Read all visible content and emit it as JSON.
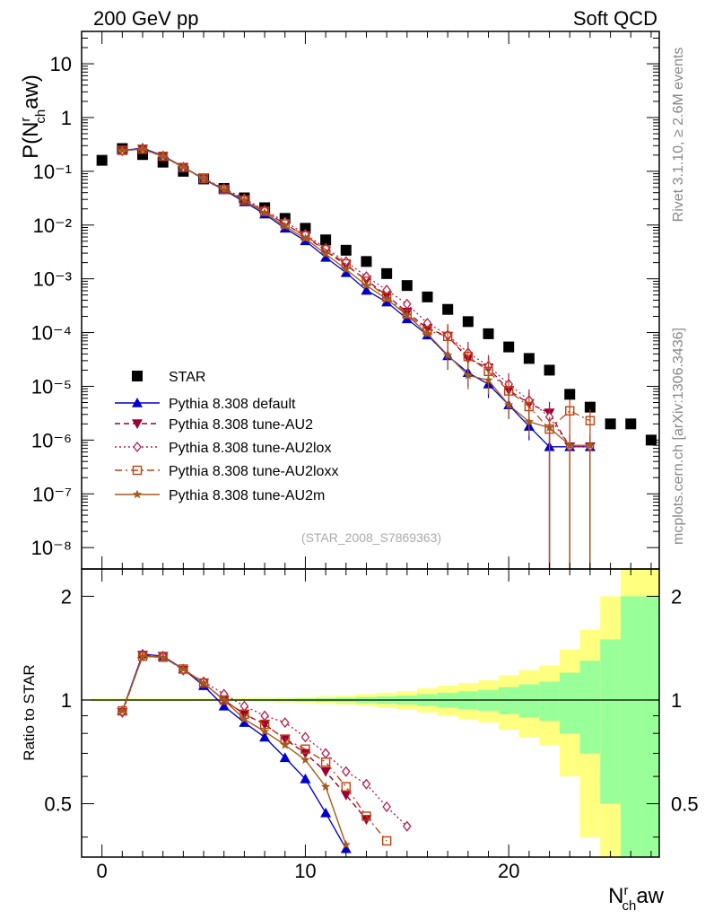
{
  "header": {
    "left": "200 GeV pp",
    "right": "Soft QCD"
  },
  "side": {
    "rivet": "Rivet 3.1.10, ≥ 2.6M events",
    "mcplots": "mcplots.cern.ch [arXiv:1306.3436]"
  },
  "axes": {
    "ylabel_top": {
      "base": "P(N",
      "sup": "r",
      "sub": "ch",
      "tail": "aw)"
    },
    "ylabel_bottom": "Ratio to STAR",
    "xlabel": {
      "base": "N",
      "sup": "r",
      "sub": "ch",
      "tail": "aw"
    }
  },
  "analysis_id": "(STAR_2008_S7869363)",
  "colors": {
    "star": "#000000",
    "default": "#0000cc",
    "au2": "#990033",
    "au2lox": "#b0204f",
    "au2loxx": "#c04010",
    "au2m": "#a35a1a",
    "band_green": "#99ff99",
    "band_yellow": "#ffff80"
  },
  "chart_data": [
    {
      "type": "scatter",
      "panel": "main",
      "xlim": [
        -1,
        27.4
      ],
      "ylim": [
        4e-09,
        40
      ],
      "yscale": "log",
      "xticks": [
        0,
        10,
        20
      ],
      "ytick_labels": [
        "10",
        "1",
        "10⁻¹",
        "10⁻²",
        "10⁻³",
        "10⁻⁴",
        "10⁻⁵",
        "10⁻⁶",
        "10⁻⁷",
        "10⁻⁸"
      ],
      "legend_position": "bottom-left",
      "series": [
        {
          "name": "STAR",
          "key": "star",
          "marker": "square",
          "x": [
            0,
            1,
            2,
            3,
            4,
            5,
            6,
            7,
            8,
            9,
            10,
            11,
            12,
            13,
            14,
            15,
            16,
            17,
            18,
            19,
            20,
            21,
            22,
            23,
            24,
            25,
            26,
            27
          ],
          "y": [
            0.16,
            0.265,
            0.205,
            0.148,
            0.1,
            0.072,
            0.048,
            0.032,
            0.021,
            0.0133,
            0.0087,
            0.0053,
            0.0034,
            0.0021,
            0.00125,
            0.00075,
            0.00046,
            0.00027,
            0.00016,
            9.5e-05,
            5.4e-05,
            3.3e-05,
            2e-05,
            7.1e-06,
            4.1e-06,
            2e-06,
            2e-06,
            1e-06
          ]
        },
        {
          "name": "Pythia 8.308 default",
          "key": "default",
          "marker": "triangle-up",
          "dash": "",
          "x": [
            1,
            2,
            3,
            4,
            5,
            6,
            7,
            8,
            9,
            10,
            11,
            12,
            13,
            14,
            15,
            16,
            17,
            18,
            19,
            20,
            21,
            22,
            23,
            24
          ],
          "y": [
            0.245,
            0.27,
            0.195,
            0.12,
            0.071,
            0.045,
            0.027,
            0.016,
            0.0087,
            0.0051,
            0.0025,
            0.0013,
            0.00061,
            0.00037,
            0.00018,
            9e-05,
            3.7e-05,
            1.8e-05,
            1.1e-05,
            4.5e-06,
            1.8e-06,
            7.5e-07,
            7.5e-07,
            7.5e-07
          ]
        },
        {
          "name": "Pythia 8.308 tune-AU2",
          "key": "au2",
          "marker": "triangle-down",
          "dash": "6,4",
          "x": [
            1,
            2,
            3,
            4,
            5,
            6,
            7,
            8,
            9,
            10,
            11,
            12,
            13,
            14,
            15,
            16,
            17,
            18,
            19,
            20,
            21,
            22,
            23,
            24
          ],
          "y": [
            0.245,
            0.262,
            0.192,
            0.118,
            0.073,
            0.046,
            0.029,
            0.018,
            0.0105,
            0.0062,
            0.0033,
            0.0018,
            0.00095,
            0.00049,
            0.00024,
            0.00012,
            8.5e-05,
            3.3e-05,
            2.2e-05,
            8.5e-06,
            4.8e-06,
            3.2e-06,
            7.5e-07,
            7.5e-07
          ]
        },
        {
          "name": "Pythia 8.308 tune-AU2lox",
          "key": "au2lox",
          "marker": "diamond",
          "dash": "2,3",
          "x": [
            1,
            2,
            3,
            4,
            5,
            6,
            7,
            8,
            9,
            10,
            11,
            12,
            13,
            14,
            15,
            16,
            17,
            18,
            19,
            20,
            21,
            22,
            23,
            24
          ],
          "y": [
            0.24,
            0.258,
            0.19,
            0.118,
            0.074,
            0.048,
            0.031,
            0.019,
            0.0115,
            0.0068,
            0.0037,
            0.0021,
            0.0011,
            0.00062,
            0.00034,
            0.00015,
            9e-05,
            4.2e-05,
            2.4e-05,
            1.1e-05,
            5.5e-06,
            2.7e-06,
            7.5e-07,
            7.5e-07
          ]
        },
        {
          "name": "Pythia 8.308 tune-AU2loxx",
          "key": "au2loxx",
          "marker": "square-open",
          "dash": "8,4,2,4",
          "x": [
            1,
            2,
            3,
            4,
            5,
            6,
            7,
            8,
            9,
            10,
            11,
            12,
            13,
            14,
            15,
            16,
            17,
            18,
            19,
            20,
            21,
            22,
            23,
            24
          ],
          "y": [
            0.245,
            0.258,
            0.19,
            0.118,
            0.073,
            0.046,
            0.029,
            0.018,
            0.0105,
            0.0063,
            0.0035,
            0.0019,
            0.0009,
            0.00046,
            0.00022,
            0.00011,
            8.5e-05,
            3.6e-05,
            1.9e-05,
            8.2e-06,
            4.2e-06,
            1.6e-06,
            3.5e-06,
            2.3e-06
          ]
        },
        {
          "name": "Pythia 8.308 tune-AU2m",
          "key": "au2m",
          "marker": "star",
          "dash": "",
          "x": [
            1,
            2,
            3,
            4,
            5,
            6,
            7,
            8,
            9,
            10,
            11,
            12,
            13,
            14,
            15,
            16,
            17,
            18,
            19,
            20,
            21,
            22,
            23,
            24
          ],
          "y": [
            0.245,
            0.258,
            0.19,
            0.12,
            0.073,
            0.046,
            0.029,
            0.017,
            0.0095,
            0.0056,
            0.0029,
            0.0015,
            0.00075,
            0.00042,
            0.00021,
            9.5e-05,
            3.8e-05,
            1.6e-05,
            1.3e-05,
            4.5e-06,
            2.2e-06,
            1.7e-06,
            8e-07,
            8e-07
          ]
        }
      ]
    },
    {
      "type": "line",
      "panel": "ratio",
      "xlim": [
        -1,
        27.4
      ],
      "ylim": [
        0.35,
        2.4
      ],
      "yscale": "log",
      "yticks": [
        0.5,
        1,
        2
      ],
      "ytick_labels": [
        "0.5",
        "1",
        "2"
      ],
      "xticks": [
        0,
        10,
        20
      ],
      "xtick_labels": [
        "0",
        "10",
        "20"
      ],
      "reference": 1,
      "bands": {
        "x": [
          0,
          1,
          2,
          3,
          4,
          5,
          6,
          7,
          8,
          9,
          10,
          11,
          12,
          13,
          14,
          15,
          16,
          17,
          18,
          19,
          20,
          21,
          22,
          23,
          24,
          25,
          26,
          27
        ],
        "green_half": [
          0.005,
          0.005,
          0.005,
          0.005,
          0.005,
          0.005,
          0.005,
          0.006,
          0.007,
          0.008,
          0.01,
          0.012,
          0.015,
          0.02,
          0.025,
          0.03,
          0.04,
          0.05,
          0.06,
          0.07,
          0.09,
          0.11,
          0.13,
          0.2,
          0.3,
          0.5,
          1.0,
          1.0
        ],
        "yellow_half": [
          0.01,
          0.01,
          0.01,
          0.01,
          0.01,
          0.01,
          0.01,
          0.012,
          0.014,
          0.016,
          0.02,
          0.025,
          0.03,
          0.04,
          0.05,
          0.06,
          0.08,
          0.1,
          0.12,
          0.14,
          0.18,
          0.22,
          0.26,
          0.4,
          0.6,
          1.0,
          2.0,
          2.0
        ]
      },
      "series": [
        {
          "name": "Pythia 8.308 default",
          "key": "default",
          "x": [
            1,
            2,
            3,
            4,
            5,
            6,
            7,
            8,
            9,
            10,
            11,
            12
          ],
          "y": [
            0.93,
            1.36,
            1.34,
            1.23,
            1.1,
            0.96,
            0.86,
            0.78,
            0.68,
            0.59,
            0.47,
            0.37
          ]
        },
        {
          "name": "Pythia 8.308 tune-AU2",
          "key": "au2",
          "x": [
            1,
            2,
            3,
            4,
            5,
            6,
            7,
            8,
            9,
            10,
            11,
            12,
            13
          ],
          "y": [
            0.92,
            1.35,
            1.34,
            1.22,
            1.12,
            1.0,
            0.91,
            0.85,
            0.77,
            0.7,
            0.62,
            0.53,
            0.45
          ]
        },
        {
          "name": "Pythia 8.308 tune-AU2lox",
          "key": "au2lox",
          "x": [
            1,
            2,
            3,
            4,
            5,
            6,
            7,
            8,
            9,
            10,
            11,
            12,
            13,
            14,
            15
          ],
          "y": [
            0.92,
            1.35,
            1.34,
            1.22,
            1.13,
            1.04,
            0.96,
            0.9,
            0.86,
            0.78,
            0.7,
            0.62,
            0.57,
            0.49,
            0.43
          ]
        },
        {
          "name": "Pythia 8.308 tune-AU2loxx",
          "key": "au2loxx",
          "x": [
            1,
            2,
            3,
            4,
            5,
            6,
            7,
            8,
            9,
            10,
            11,
            12,
            13,
            14
          ],
          "y": [
            0.93,
            1.34,
            1.33,
            1.23,
            1.12,
            1.0,
            0.91,
            0.85,
            0.77,
            0.72,
            0.66,
            0.56,
            0.46,
            0.39
          ]
        },
        {
          "name": "Pythia 8.308 tune-AU2m",
          "key": "au2m",
          "x": [
            1,
            2,
            3,
            4,
            5,
            6,
            7,
            8,
            9,
            10,
            11,
            12
          ],
          "y": [
            0.93,
            1.34,
            1.33,
            1.23,
            1.12,
            1.0,
            0.88,
            0.81,
            0.74,
            0.67,
            0.56,
            0.38
          ]
        }
      ]
    }
  ]
}
